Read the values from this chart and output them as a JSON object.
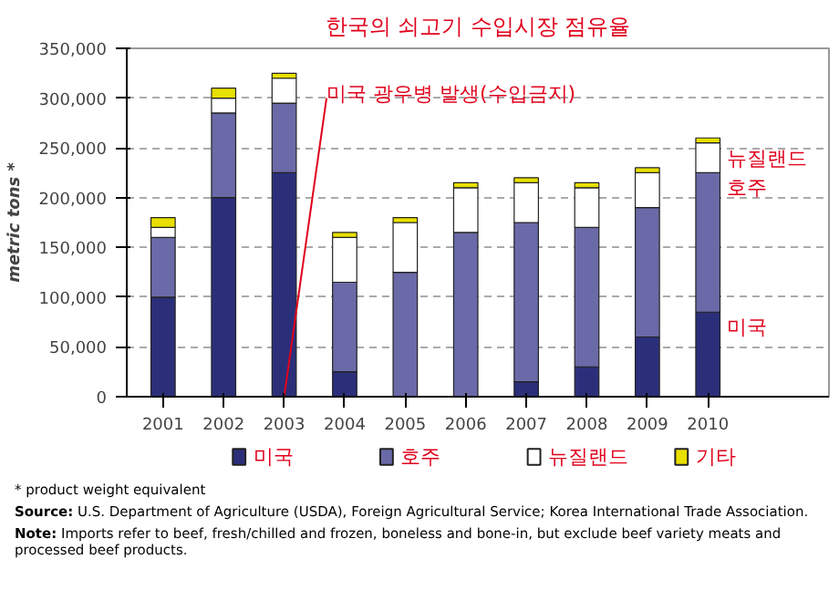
{
  "chart_data": {
    "type": "bar",
    "stacked": true,
    "title": "한국의 쇠고기 수입시장 점유율",
    "ylabel": "metric tons *",
    "categories": [
      "2001",
      "2002",
      "2003",
      "2004",
      "2005",
      "2006",
      "2007",
      "2008",
      "2009",
      "2010"
    ],
    "series": [
      {
        "name": "미국",
        "color": "#2b2f7a",
        "values": [
          100000,
          200000,
          225000,
          25000,
          0,
          0,
          15000,
          30000,
          60000,
          85000
        ]
      },
      {
        "name": "호주",
        "color": "#6a6aa8",
        "values": [
          60000,
          85000,
          70000,
          90000,
          125000,
          165000,
          160000,
          140000,
          130000,
          140000
        ]
      },
      {
        "name": "뉴질랜드",
        "color": "#ffffff",
        "values": [
          10000,
          15000,
          25000,
          45000,
          50000,
          45000,
          40000,
          40000,
          35000,
          30000
        ]
      },
      {
        "name": "기타",
        "color": "#e8e000",
        "values": [
          10000,
          10000,
          5000,
          5000,
          5000,
          5000,
          5000,
          5000,
          5000,
          5000
        ]
      }
    ],
    "ylim": [
      0,
      350000
    ],
    "yticks": [
      0,
      {
        "value": 50000,
        "label": "50,000"
      },
      {
        "value": 100000,
        "label": "100,000"
      },
      {
        "value": 150000,
        "label": "150,000"
      },
      {
        "value": 200000,
        "label": "200,000"
      },
      {
        "value": 250000,
        "label": "250,000"
      },
      {
        "value": 300000,
        "label": "300,000"
      },
      {
        "value": 350000,
        "label": "350,000"
      }
    ],
    "grid": "y",
    "legend": "bottom",
    "annotations": [
      {
        "text": "미국 광우병 발생(수입금지)",
        "x": "2003",
        "y": 300000
      },
      {
        "text": "뉴질랜드",
        "x": "2010",
        "y": 255000
      },
      {
        "text": "호주",
        "x": "2010",
        "y": 225000
      },
      {
        "text": "미국",
        "x": "2010",
        "y": 85000
      },
      "* product weight equivalent",
      "Source: U.S. Department of Agriculture (USDA), Foreign Agricultural Service; Korea International Trade Association.",
      "Note: Imports refer to beef, fresh/chilled and frozen, boneless and bone-in, but exclude beef variety meats and processed beef products."
    ]
  }
}
